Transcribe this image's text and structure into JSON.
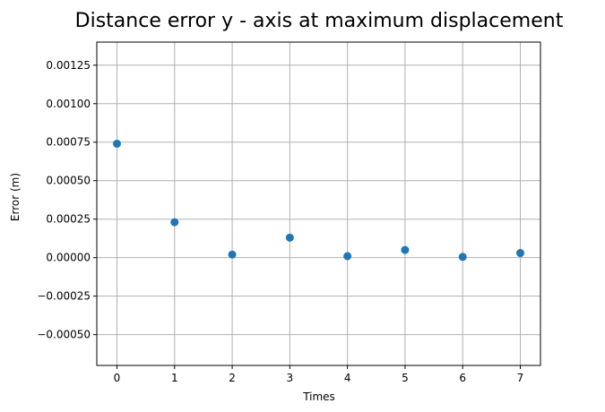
{
  "chart_data": {
    "type": "scatter",
    "title": "Distance error y - axis at maximum displacement",
    "xlabel": "Times",
    "ylabel": "Error (m)",
    "x": [
      0,
      1,
      2,
      3,
      4,
      5,
      6,
      7
    ],
    "y": [
      0.00074,
      0.00023,
      2e-05,
      0.00013,
      1e-05,
      5e-05,
      5e-06,
      3e-05
    ],
    "xlim": [
      -0.35,
      7.35
    ],
    "ylim": [
      -0.0007,
      0.0014
    ],
    "xticks": [
      "0",
      "1",
      "2",
      "3",
      "4",
      "5",
      "6",
      "7"
    ],
    "yticks": [
      "−0.00050",
      "−0.00025",
      "0.00000",
      "0.00025",
      "0.00050",
      "0.00075",
      "0.00100",
      "0.00125"
    ],
    "grid": true,
    "marker_color": "#1f77b4",
    "grid_color": "#b0b0b0"
  }
}
